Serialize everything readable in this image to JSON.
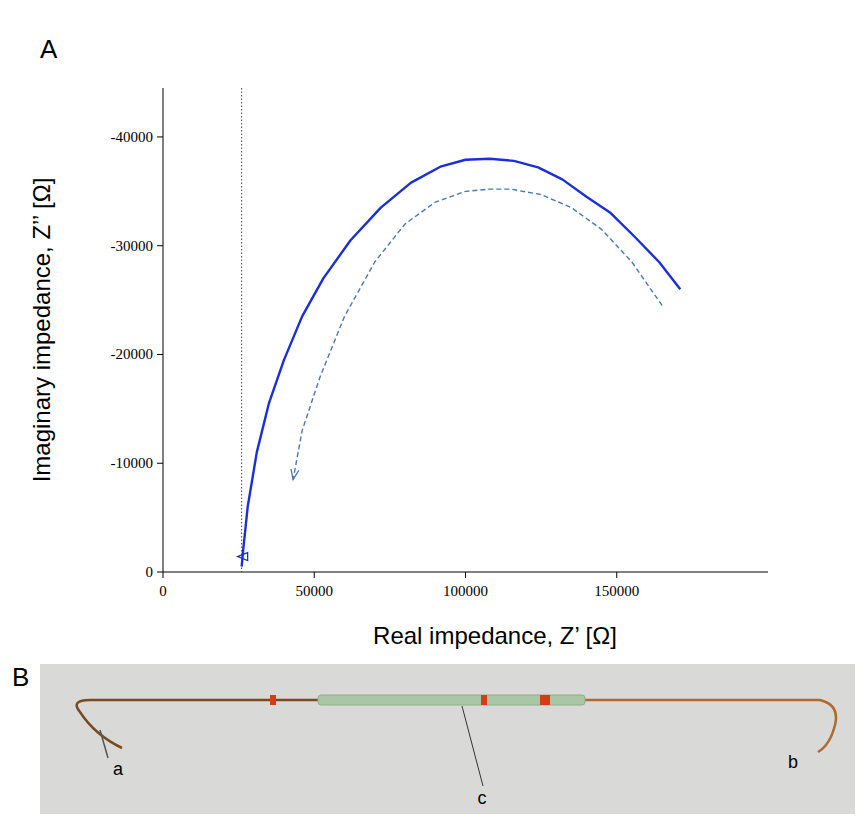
{
  "chart_data": {
    "type": "line",
    "x_label": "Real impedance, Z’ [Ω]",
    "y_label": "Imaginary impedance, Z’’ [Ω]",
    "panel": "A",
    "xlim": [
      0,
      200000
    ],
    "xticks": [
      0,
      50000,
      100000,
      150000
    ],
    "ylim": [
      0,
      -44500
    ],
    "yticks": [
      0,
      -10000,
      -20000,
      -30000,
      -40000
    ],
    "grid": false,
    "vlines": [
      26000
    ],
    "series": [
      {
        "color": "#1a2fd6",
        "line_style": "solid",
        "marker": "arrow-start",
        "x": [
          26000,
          26500,
          28000,
          31000,
          35000,
          40000,
          46000,
          53000,
          62000,
          72000,
          82000,
          92000,
          100000,
          108000,
          116000,
          124000,
          132000,
          140000,
          148000,
          156000,
          164000,
          171000
        ],
        "values": [
          -500,
          -2000,
          -6000,
          -11000,
          -15500,
          -19500,
          -23500,
          -27000,
          -30500,
          -33500,
          -35800,
          -37300,
          -37900,
          -38000,
          -37800,
          -37200,
          -36100,
          -34500,
          -33000,
          -30800,
          -28500,
          -26000
        ]
      },
      {
        "color": "#4a78b0",
        "line_style": "dashed",
        "marker": "arrow-end",
        "x": [
          165000,
          155000,
          145000,
          135000,
          125000,
          115000,
          108000,
          100000,
          90000,
          80000,
          70000,
          60000,
          52000,
          46000,
          43000
        ],
        "values": [
          -24500,
          -28500,
          -31500,
          -33500,
          -34700,
          -35200,
          -35200,
          -35000,
          -34000,
          -32000,
          -28500,
          -23500,
          -18000,
          -13000,
          -8500
        ]
      }
    ]
  },
  "photo": {
    "panel": "B",
    "labels": [
      "a",
      "b",
      "c"
    ]
  }
}
